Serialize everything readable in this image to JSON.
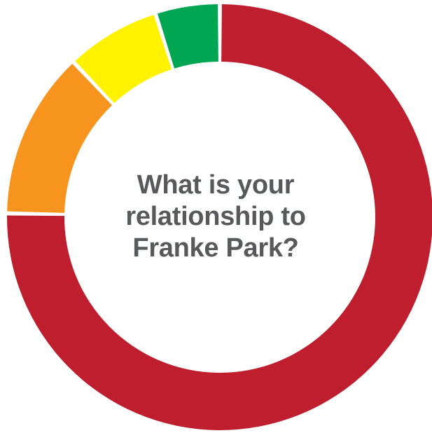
{
  "chart_data": {
    "type": "pie",
    "title_lines": [
      "What is your",
      "relationship to",
      "Franke Park?"
    ],
    "categories": [
      "",
      "",
      "",
      "",
      ""
    ],
    "values": [
      72.5,
      12.2,
      6.9,
      4.7,
      0
    ],
    "slices": [
      {
        "value": 72.5,
        "color": "#be1e2d"
      },
      {
        "value": 12.2,
        "color": "#f7941d"
      },
      {
        "value": 6.9,
        "color": "#fff200"
      },
      {
        "value": 4.7,
        "color": "#00a651"
      }
    ],
    "start_angle_deg": 0,
    "legend": "none"
  }
}
